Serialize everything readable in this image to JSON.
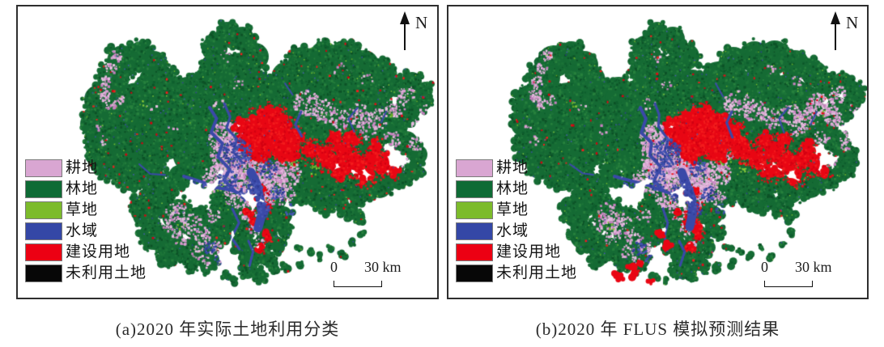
{
  "figure": {
    "panels": [
      {
        "id": "a",
        "caption": "(a)2020 年实际土地利用分类",
        "north_label": "N",
        "scale_zero": "0",
        "scale_label": "30 km",
        "legend": [
          {
            "label": "耕地",
            "color": "#d9a6d2"
          },
          {
            "label": "林地",
            "color": "#0e6b35"
          },
          {
            "label": "草地",
            "color": "#7cbb2b"
          },
          {
            "label": "水域",
            "color": "#3447a6"
          },
          {
            "label": "建设用地",
            "color": "#ec0013"
          },
          {
            "label": "未利用土地",
            "color": "#070707"
          }
        ]
      },
      {
        "id": "b",
        "caption": "(b)2020 年 FLUS 模拟预测结果",
        "north_label": "N",
        "scale_zero": "0",
        "scale_label": "30 km",
        "legend": [
          {
            "label": "耕地",
            "color": "#d9a6d2"
          },
          {
            "label": "林地",
            "color": "#0e6b35"
          },
          {
            "label": "草地",
            "color": "#7cbb2b"
          },
          {
            "label": "水域",
            "color": "#3447a6"
          },
          {
            "label": "建设用地",
            "color": "#ec0013"
          },
          {
            "label": "未利用土地",
            "color": "#070707"
          }
        ]
      }
    ]
  },
  "map_colors": {
    "forest": "#156b34",
    "forest_dark": "#0b5226",
    "forest_light": "#26813c",
    "cropland": "#d9a0d0",
    "cropland_light": "#e3b4dc",
    "cropland_deep": "#c77fc0",
    "grass": "#74bb2b",
    "water": "#3a49a8",
    "built": "#e90613",
    "unused": "#070707",
    "background": "#ffffff"
  }
}
